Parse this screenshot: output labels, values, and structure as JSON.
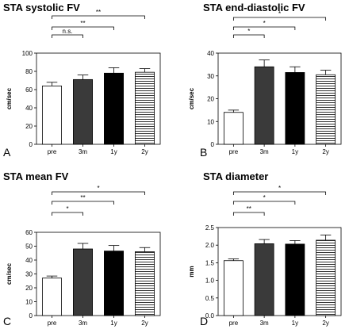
{
  "chart_data": [
    {
      "type": "bar",
      "panel_label": "A",
      "title": "STA systolic FV",
      "ylabel": "cm/sec",
      "xlabel": "",
      "categories": [
        "pre",
        "3m",
        "1y",
        "2y"
      ],
      "values": [
        64,
        71,
        78,
        79
      ],
      "errors": [
        4,
        5,
        6,
        4
      ],
      "ylim": [
        0,
        100
      ],
      "yticks": [
        0,
        20,
        40,
        60,
        80,
        100
      ],
      "fills": [
        "white",
        "dark-gray",
        "black",
        "horizontal-stripes"
      ],
      "significance": [
        {
          "from": "pre",
          "to": "3m",
          "label": "n.s."
        },
        {
          "from": "pre",
          "to": "1y",
          "label": "**"
        },
        {
          "from": "pre",
          "to": "2y",
          "label": "**"
        }
      ]
    },
    {
      "type": "bar",
      "panel_label": "B",
      "title": "STA end-diastolic FV",
      "ylabel": "cm/sec",
      "xlabel": "",
      "categories": [
        "pre",
        "3m",
        "1y",
        "2y"
      ],
      "values": [
        14,
        34,
        31.5,
        30.5
      ],
      "errors": [
        1,
        3,
        2.5,
        2
      ],
      "ylim": [
        0,
        40
      ],
      "yticks": [
        0,
        10,
        20,
        30,
        40
      ],
      "fills": [
        "white",
        "dark-gray",
        "black",
        "horizontal-stripes"
      ],
      "significance": [
        {
          "from": "pre",
          "to": "3m",
          "label": "*"
        },
        {
          "from": "pre",
          "to": "1y",
          "label": "*"
        },
        {
          "from": "pre",
          "to": "2y",
          "label": "*"
        }
      ]
    },
    {
      "type": "bar",
      "panel_label": "C",
      "title": "STA mean FV",
      "ylabel": "cm/sec",
      "xlabel": "",
      "categories": [
        "pre",
        "3m",
        "1y",
        "2y"
      ],
      "values": [
        27,
        48,
        46.5,
        46
      ],
      "errors": [
        1.5,
        4,
        4,
        3
      ],
      "ylim": [
        0,
        60
      ],
      "yticks": [
        0,
        10,
        20,
        30,
        40,
        50,
        60
      ],
      "fills": [
        "white",
        "dark-gray",
        "black",
        "horizontal-stripes"
      ],
      "significance": [
        {
          "from": "pre",
          "to": "3m",
          "label": "*"
        },
        {
          "from": "pre",
          "to": "1y",
          "label": "**"
        },
        {
          "from": "pre",
          "to": "2y",
          "label": "*"
        }
      ]
    },
    {
      "type": "bar",
      "panel_label": "D",
      "title": "STA diameter",
      "ylabel": "mm",
      "xlabel": "",
      "categories": [
        "pre",
        "3m",
        "1y",
        "2y"
      ],
      "values": [
        1.56,
        2.04,
        2.03,
        2.14
      ],
      "errors": [
        0.05,
        0.12,
        0.1,
        0.15
      ],
      "ylim": [
        0,
        2.5
      ],
      "yticks": [
        0,
        0.5,
        1.0,
        1.5,
        2.0,
        2.5
      ],
      "ytick_labels": [
        "0.0",
        "0.5",
        "1.0",
        "1.5",
        "2.0",
        "2.5"
      ],
      "fills": [
        "white",
        "dark-gray",
        "black",
        "horizontal-stripes"
      ],
      "significance": [
        {
          "from": "pre",
          "to": "3m",
          "label": "**"
        },
        {
          "from": "pre",
          "to": "1y",
          "label": "*"
        },
        {
          "from": "pre",
          "to": "2y",
          "label": "*"
        }
      ]
    }
  ],
  "colors": {
    "white": "#ffffff",
    "dark-gray": "#3a3a3a",
    "black": "#000000",
    "outline": "#000000",
    "stripe": "#000000"
  }
}
